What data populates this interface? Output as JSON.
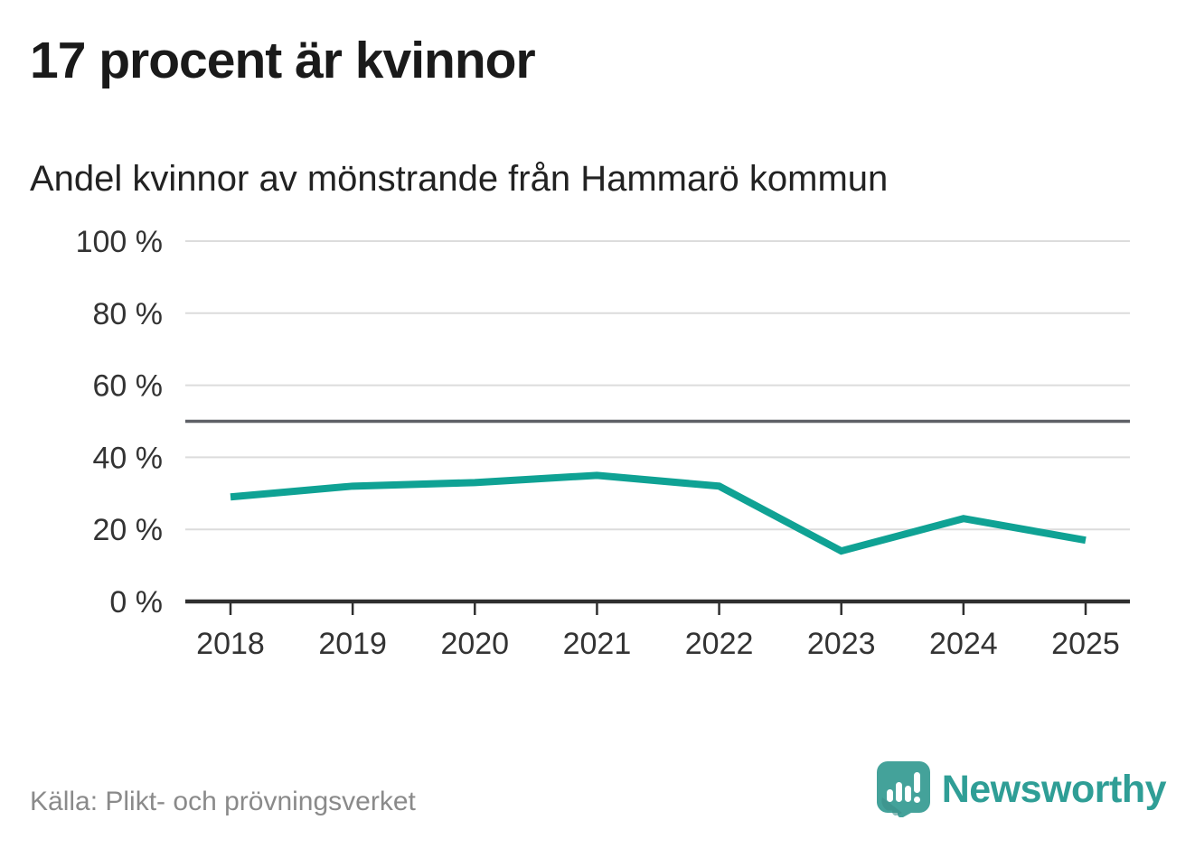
{
  "header": {
    "title": "17 procent är kvinnor",
    "subtitle": "Andel kvinnor av mönstrande från Hammarö kommun"
  },
  "chart_data": {
    "type": "line",
    "x": [
      2018,
      2019,
      2020,
      2021,
      2022,
      2023,
      2024,
      2025
    ],
    "series": [
      {
        "name": "Andel kvinnor av mönstrande",
        "values": [
          29,
          32,
          33,
          35,
          32,
          14,
          23,
          17
        ]
      }
    ],
    "title": "17 procent är kvinnor",
    "subtitle": "Andel kvinnor av mönstrande från Hammarö kommun",
    "xlabel": "",
    "ylabel": "",
    "ylim": [
      0,
      100
    ],
    "yticks": [
      0,
      20,
      40,
      60,
      80,
      100
    ],
    "ytick_labels": [
      "0 %",
      "20 %",
      "40 %",
      "60 %",
      "80 %",
      "100 %"
    ],
    "reference_line": {
      "value": 50,
      "color": "#5e6066"
    },
    "grid": "horizontal",
    "legend": "none",
    "colors": {
      "line": "#0fa294",
      "gridline": "#dcdcdc",
      "axis": "#2f2f2f",
      "tick_label": "#333333"
    }
  },
  "footer": {
    "source": "Källa: Plikt- och prövningsverket",
    "logo_text": "Newsworthy",
    "logo_color": "#2f9e96",
    "logo_mark_color": "#44a29a"
  }
}
